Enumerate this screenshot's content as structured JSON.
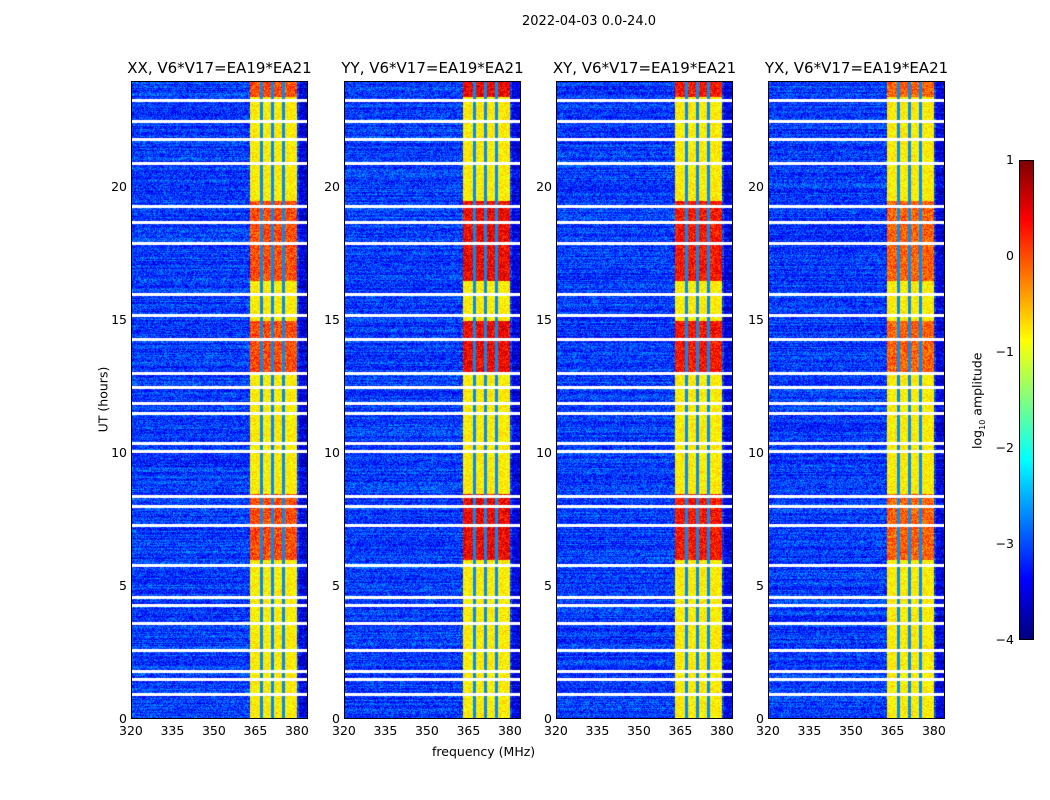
{
  "suptitle": "2022-04-03 0.0-24.0",
  "chart_data": {
    "type": "heatmap",
    "xlabel": "frequency (MHz)",
    "ylabel": "UT (hours)",
    "xlim": [
      320,
      384
    ],
    "ylim": [
      0,
      24
    ],
    "xticks": [
      "320",
      "335",
      "350",
      "365",
      "380"
    ],
    "xtick_values": [
      320,
      335,
      350,
      365,
      380
    ],
    "yticks": [
      "0",
      "5",
      "10",
      "15",
      "20"
    ],
    "ytick_values": [
      0,
      5,
      10,
      15,
      20
    ],
    "colorbar": {
      "label": "log10 amplitude",
      "label_main": "log",
      "label_sub": "10",
      "label_rest": " amplitude",
      "range": [
        -4,
        1
      ],
      "ticks": [
        "1",
        "0",
        "−1",
        "−2",
        "−3",
        "−4"
      ],
      "tick_values": [
        1,
        0,
        -1,
        -2,
        -3,
        -4
      ],
      "colormap": "jet"
    },
    "background_level": -3.1,
    "rfi_band_mhz": [
      363,
      380
    ],
    "rfi_channel_edges_mhz": [
      367,
      371,
      375
    ],
    "rfi_band_level": -0.8,
    "flagged_ut_hours": [
      0.95,
      1.5,
      1.8,
      2.6,
      3.6,
      4.3,
      4.6,
      5.8,
      7.3,
      8.0,
      8.4,
      10.1,
      10.4,
      11.5,
      11.9,
      12.5,
      13.0,
      14.3,
      15.2,
      16.0,
      17.9,
      18.7,
      19.3,
      20.9,
      21.8,
      22.5,
      23.3
    ],
    "strong_rfi_epochs_ut": [
      [
        6,
        8.5
      ],
      [
        13,
        15
      ],
      [
        16.5,
        19.5
      ],
      [
        23.4,
        24
      ]
    ],
    "panels": [
      {
        "title": "XX, V6*V17=EA19*EA21",
        "strong_level": 0.0
      },
      {
        "title": "YY, V6*V17=EA19*EA21",
        "strong_level": 0.4
      },
      {
        "title": "XY, V6*V17=EA19*EA21",
        "strong_level": 0.3
      },
      {
        "title": "YX, V6*V17=EA19*EA21",
        "strong_level": -0.1
      }
    ]
  }
}
